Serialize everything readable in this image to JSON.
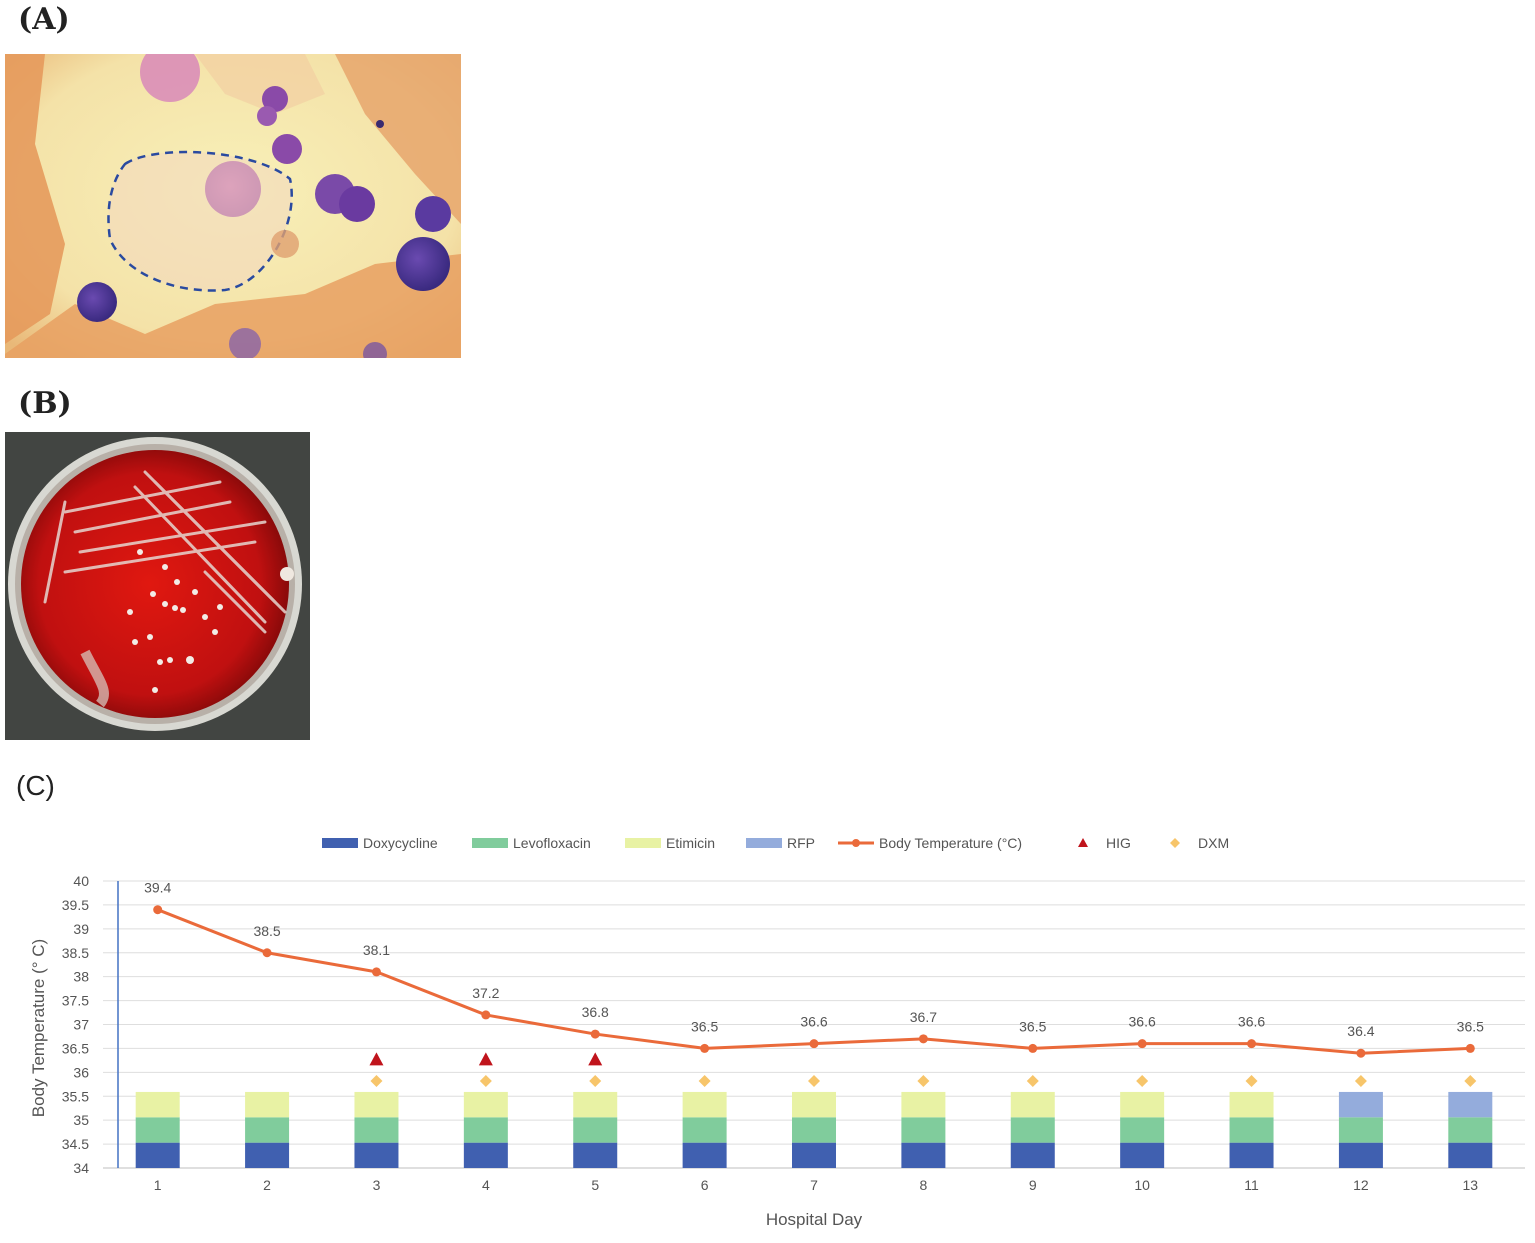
{
  "panels": {
    "a_label": "(A)",
    "b_label": "(B)",
    "c_label": "(C)"
  },
  "chart_data": {
    "type": "bar",
    "xlabel": "Hospital Day",
    "ylabel": "Body Temperature (° C)",
    "ylim": [
      34,
      40
    ],
    "yticks": [
      34,
      34.5,
      35,
      35.5,
      36,
      36.5,
      37,
      37.5,
      38,
      38.5,
      39,
      39.5,
      40
    ],
    "categories": [
      "1",
      "2",
      "3",
      "4",
      "5",
      "6",
      "7",
      "8",
      "9",
      "10",
      "11",
      "12",
      "13"
    ],
    "grid": true,
    "legend_position": "top",
    "legend": [
      "Doxycycline",
      "Levofloxacin",
      "Etimicin",
      "RFP",
      "Body Temperature (°C)",
      "HIG",
      "DXM"
    ],
    "series": [
      {
        "name": "Doxycycline",
        "type": "bar-stacked",
        "color": "#4060b0",
        "values": [
          1,
          1,
          1,
          1,
          1,
          1,
          1,
          1,
          1,
          1,
          1,
          1,
          1
        ]
      },
      {
        "name": "Levofloxacin",
        "type": "bar-stacked",
        "color": "#80cc9c",
        "values": [
          1,
          1,
          1,
          1,
          1,
          1,
          1,
          1,
          1,
          1,
          1,
          1,
          1
        ]
      },
      {
        "name": "Etimicin",
        "type": "bar-stacked",
        "color": "#e8f2a4",
        "values": [
          1,
          1,
          1,
          1,
          1,
          1,
          1,
          1,
          1,
          1,
          1,
          0,
          0
        ]
      },
      {
        "name": "RFP",
        "type": "bar-stacked",
        "color": "#94acdc",
        "values": [
          0,
          0,
          0,
          0,
          0,
          0,
          0,
          0,
          0,
          0,
          0,
          1,
          1
        ]
      },
      {
        "name": "Body Temperature (°C)",
        "type": "line",
        "color": "#ea6a3a",
        "values": [
          39.4,
          38.5,
          38.1,
          37.2,
          36.8,
          36.5,
          36.6,
          36.7,
          36.5,
          36.6,
          36.6,
          36.4,
          36.5
        ]
      },
      {
        "name": "HIG",
        "type": "marker-triangle",
        "color": "#c0141c",
        "days": [
          "3",
          "4",
          "5"
        ]
      },
      {
        "name": "DXM",
        "type": "marker-diamond",
        "color": "#f7c56a",
        "days": [
          "3",
          "4",
          "5",
          "6",
          "7",
          "8",
          "9",
          "10",
          "11",
          "12",
          "13"
        ]
      }
    ],
    "data_labels": [
      "39.4",
      "38.5",
      "38.1",
      "37.2",
      "36.8",
      "36.5",
      "36.6",
      "36.7",
      "36.5",
      "36.6",
      "36.6",
      "36.4",
      "36.5"
    ]
  }
}
